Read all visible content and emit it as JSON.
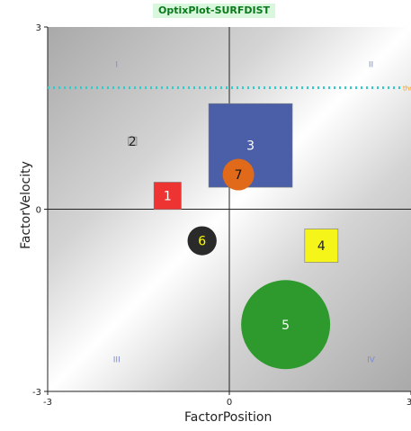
{
  "title": "OptixPlot-SURFDIST",
  "colors": {
    "title_bg": "#d9f7dc",
    "title_text": "#0a7a1c",
    "threshold": "#33cccc",
    "threshold_label": "#ff9900",
    "quadrant_label": "#7b8bd8"
  },
  "chart_data": {
    "type": "scatter",
    "title": "OptixPlot-SURFDIST",
    "xlabel": "FactorPosition",
    "ylabel": "FactorVelocity",
    "xlim": [
      -3,
      3
    ],
    "ylim": [
      -3,
      3
    ],
    "x_ticks": [
      "-3",
      "0",
      "3"
    ],
    "y_ticks": [
      "3",
      "0",
      "-3"
    ],
    "grid": false,
    "quadrant_labels": [
      "I",
      "II",
      "III",
      "IV"
    ],
    "threshold_line": {
      "y": 2.0,
      "label": "thr"
    },
    "points": [
      {
        "label": "1",
        "x": -1.02,
        "y": 0.22,
        "shape": "square",
        "size": 0.45,
        "color": "#ee3333",
        "text_color": "#ffffff"
      },
      {
        "label": "2",
        "x": -1.6,
        "y": 1.12,
        "shape": "square",
        "size": 0.14,
        "color": "#bdbdbd",
        "text_color": "#222222"
      },
      {
        "label": "3",
        "x": 0.35,
        "y": 1.05,
        "shape": "square",
        "size": 1.38,
        "color": "#4a5fa8",
        "text_color": "#ffffff"
      },
      {
        "label": "4",
        "x": 1.52,
        "y": -0.6,
        "shape": "square",
        "size": 0.55,
        "color": "#f5f51a",
        "text_color": "#222222"
      },
      {
        "label": "5",
        "x": 0.93,
        "y": -1.9,
        "shape": "circle",
        "size": 1.47,
        "color": "#2e9a2e",
        "text_color": "#ffffff"
      },
      {
        "label": "6",
        "x": -0.45,
        "y": -0.52,
        "shape": "circle",
        "size": 0.48,
        "color": "#2a2a2a",
        "text_color": "#ffff00"
      },
      {
        "label": "7",
        "x": 0.15,
        "y": 0.57,
        "shape": "circle",
        "size": 0.52,
        "color": "#e06a1a",
        "text_color": "#111111"
      }
    ]
  }
}
